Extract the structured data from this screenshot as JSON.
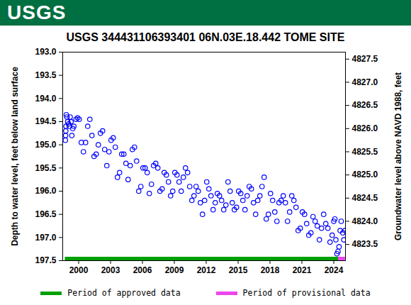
{
  "chart_data": {
    "type": "scatter",
    "logo": "USGS",
    "title": "USGS 344431106393401 06N.03E.18.442 TOME SITE",
    "y_label": "Depth to water level, feet below land surface",
    "y2_label": "Groundwater level above NAVD 1988, feet",
    "color": "#0000ff",
    "marker": "circle",
    "x": [
      1998.75,
      1998.77,
      1998.79,
      1998.81,
      1998.84,
      1998.9,
      1998.97,
      1999.05,
      1999.12,
      1999.2,
      1999.28,
      1999.36,
      1999.45,
      1999.55,
      1999.75,
      1999.9,
      2000.05,
      2000.25,
      2000.45,
      2000.65,
      2000.85,
      2001.05,
      2001.25,
      2001.45,
      2001.65,
      2001.85,
      2002.05,
      2002.25,
      2002.45,
      2002.65,
      2002.85,
      2003.05,
      2003.25,
      2003.45,
      2003.65,
      2003.85,
      2004.05,
      2004.25,
      2004.45,
      2004.65,
      2004.85,
      2005.05,
      2005.25,
      2005.45,
      2005.65,
      2005.85,
      2006.05,
      2006.25,
      2006.45,
      2006.65,
      2006.85,
      2007.05,
      2007.25,
      2007.45,
      2007.65,
      2007.85,
      2008.05,
      2008.25,
      2008.45,
      2008.65,
      2008.85,
      2009.05,
      2009.25,
      2009.45,
      2009.65,
      2009.85,
      2010.05,
      2010.25,
      2010.45,
      2010.65,
      2010.85,
      2011.05,
      2011.25,
      2011.45,
      2011.65,
      2011.85,
      2012.05,
      2012.25,
      2012.45,
      2012.65,
      2012.85,
      2013.05,
      2013.25,
      2013.45,
      2013.65,
      2013.85,
      2014.05,
      2014.25,
      2014.45,
      2014.65,
      2014.85,
      2015.05,
      2015.25,
      2015.45,
      2015.65,
      2015.85,
      2016.05,
      2016.25,
      2016.45,
      2016.65,
      2016.85,
      2017.05,
      2017.25,
      2017.45,
      2017.65,
      2017.85,
      2018.05,
      2018.25,
      2018.45,
      2018.65,
      2018.85,
      2019.05,
      2019.25,
      2019.45,
      2019.65,
      2019.85,
      2020.05,
      2020.25,
      2020.45,
      2020.65,
      2020.85,
      2021.05,
      2021.25,
      2021.45,
      2021.65,
      2021.85,
      2022.05,
      2022.25,
      2022.45,
      2022.65,
      2022.85,
      2023.05,
      2023.25,
      2023.45,
      2023.65,
      2023.85,
      2024.0,
      2024.1,
      2024.2,
      2024.3,
      2024.4,
      2024.5,
      2024.6,
      2024.7,
      2024.85,
      2024.95,
      2025.05
    ],
    "values": [
      194.9,
      194.8,
      194.7,
      194.6,
      194.35,
      194.4,
      194.5,
      194.55,
      194.6,
      194.4,
      194.5,
      194.8,
      194.65,
      194.6,
      194.45,
      194.42,
      194.45,
      194.95,
      195.15,
      194.95,
      194.6,
      194.45,
      194.8,
      195.25,
      195.2,
      195.0,
      194.75,
      194.7,
      195.1,
      195.45,
      195.15,
      194.9,
      194.85,
      195.05,
      195.7,
      195.6,
      195.2,
      195.2,
      195.4,
      195.75,
      195.45,
      195.1,
      195.05,
      195.35,
      196.0,
      195.9,
      195.5,
      195.5,
      195.6,
      196.05,
      195.85,
      195.45,
      195.4,
      195.5,
      196.0,
      195.95,
      195.6,
      195.65,
      195.8,
      196.1,
      196.0,
      195.6,
      195.65,
      195.8,
      196.0,
      195.7,
      195.5,
      195.6,
      195.9,
      196.2,
      196.1,
      195.9,
      196.0,
      196.25,
      196.5,
      196.2,
      195.8,
      195.95,
      196.1,
      196.4,
      196.25,
      196.05,
      196.1,
      196.2,
      196.4,
      196.3,
      195.8,
      196.0,
      196.25,
      196.4,
      196.35,
      196.0,
      196.05,
      196.2,
      196.4,
      196.1,
      195.9,
      195.95,
      196.25,
      196.5,
      196.2,
      196.1,
      195.9,
      195.7,
      196.6,
      196.5,
      196.05,
      196.2,
      196.45,
      196.65,
      196.25,
      196.2,
      196.1,
      196.25,
      196.65,
      196.45,
      196.1,
      196.2,
      196.35,
      196.85,
      196.8,
      196.45,
      196.5,
      196.7,
      196.95,
      196.9,
      196.55,
      196.65,
      196.75,
      197.05,
      196.8,
      196.5,
      196.7,
      196.8,
      197.1,
      196.95,
      196.65,
      196.6,
      197.05,
      197.35,
      197.3,
      197.2,
      196.85,
      196.65,
      196.9,
      197.05,
      196.85
    ],
    "periods": [
      {
        "name": "Period of approved data",
        "color": "#00a000",
        "start": 1998.7,
        "end": 2024.4
      },
      {
        "name": "Period of provisional data",
        "color": "#ee44ee",
        "start": 2024.4,
        "end": 2025.05
      }
    ],
    "xlim": [
      1998.5,
      2025.1
    ],
    "xticks": [
      2000,
      2003,
      2006,
      2009,
      2012,
      2015,
      2018,
      2021,
      2024
    ],
    "ylim": [
      193,
      197.5
    ],
    "yticks": [
      {
        "value": 193,
        "label": "193.0"
      },
      193.5,
      {
        "value": 194,
        "label": "194.0"
      },
      194.5,
      {
        "value": 195,
        "label": "195.0"
      },
      195.5,
      {
        "value": 196,
        "label": "196.0"
      },
      196.5,
      {
        "value": 197,
        "label": "197.0"
      },
      197.5
    ],
    "y2lim": [
      4827.65,
      4823.15
    ],
    "y2ticks": [
      4823.5,
      {
        "value": 4824,
        "label": "4824.0"
      },
      4824.5,
      {
        "value": 4825,
        "label": "4825.0"
      },
      4825.5,
      {
        "value": 4826,
        "label": "4826.0"
      },
      4826.5,
      {
        "value": 4827,
        "label": "4827.0"
      },
      4827.5
    ],
    "grid": false
  }
}
